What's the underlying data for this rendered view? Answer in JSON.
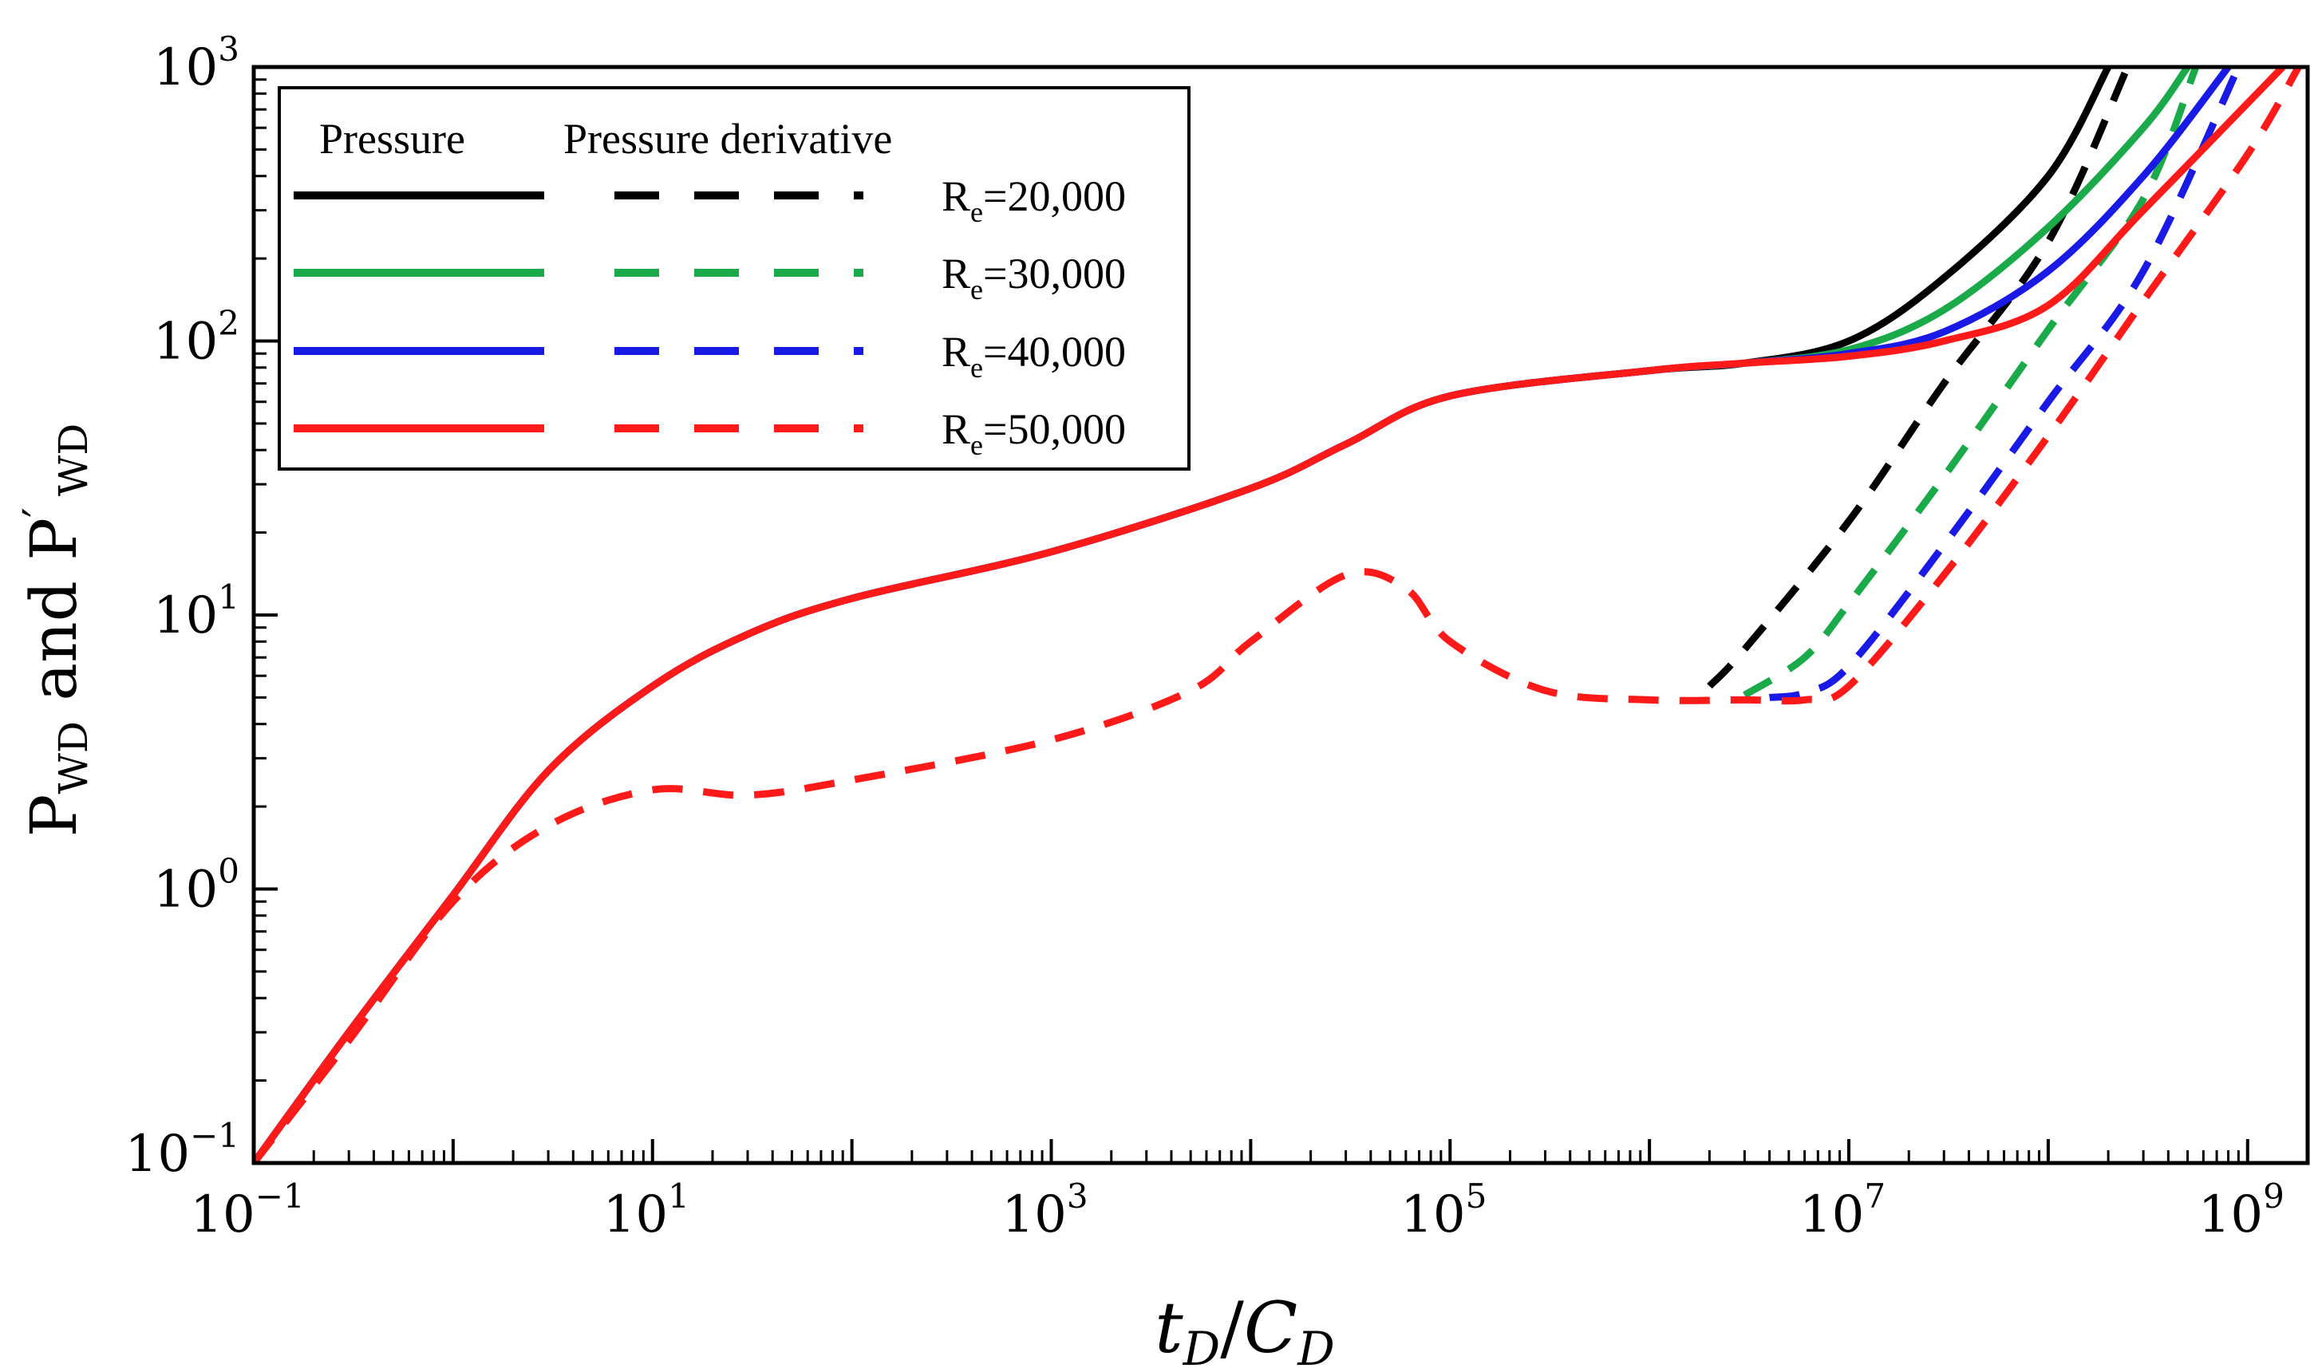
{
  "chart_data": {
    "type": "line",
    "title": "",
    "xlabel": {
      "t": "t",
      "t_sub": "D",
      "sep": "/",
      "c": "C",
      "c_sub": "D"
    },
    "ylabel": {
      "p1": "P",
      "p1_sub": "WD",
      "mid": " and P",
      "prime": "′",
      "p2_sub": "WD"
    },
    "x_scale": "log",
    "y_scale": "log",
    "xlim": [
      0.1,
      2000000000
    ],
    "ylim": [
      0.1,
      1000
    ],
    "x_ticks": [
      {
        "value": 0.1,
        "base": "10",
        "exp": "−1"
      },
      {
        "value": 10,
        "base": "10",
        "exp": "1"
      },
      {
        "value": 1000,
        "base": "10",
        "exp": "3"
      },
      {
        "value": 100000,
        "base": "10",
        "exp": "5"
      },
      {
        "value": 10000000,
        "base": "10",
        "exp": "7"
      },
      {
        "value": 1000000000,
        "base": "10",
        "exp": "9"
      }
    ],
    "y_ticks": [
      {
        "value": 0.1,
        "base": "10",
        "exp": "−1"
      },
      {
        "value": 1,
        "base": "10",
        "exp": "0"
      },
      {
        "value": 10,
        "base": "10",
        "exp": "1"
      },
      {
        "value": 100,
        "base": "10",
        "exp": "2"
      },
      {
        "value": 1000,
        "base": "10",
        "exp": "3"
      }
    ],
    "legend": {
      "position": "top-left",
      "header_pressure": "Pressure",
      "header_derivative": "Pressure derivative",
      "entries": [
        {
          "label_base": "R",
          "label_sub": "e",
          "label_value": "=20,000",
          "color": "#000000"
        },
        {
          "label_base": "R",
          "label_sub": "e",
          "label_value": "=30,000",
          "color": "#1aaa4a"
        },
        {
          "label_base": "R",
          "label_sub": "e",
          "label_value": "=40,000",
          "color": "#1a1ae6"
        },
        {
          "label_base": "R",
          "label_sub": "e",
          "label_value": "=50,000",
          "color": "#ff1a1a"
        }
      ]
    },
    "series": [
      {
        "name": "Pressure Re=20,000",
        "style": "solid",
        "color": "#000000",
        "points": [
          [
            0.1,
            0.1
          ],
          [
            0.3,
            0.3
          ],
          [
            1,
            0.95
          ],
          [
            3,
            2.7
          ],
          [
            10,
            5.5
          ],
          [
            30,
            8.5
          ],
          [
            100,
            11.5
          ],
          [
            1000,
            17
          ],
          [
            10000,
            29
          ],
          [
            30000,
            42
          ],
          [
            100000,
            63
          ],
          [
            1000000,
            78
          ],
          [
            3000000,
            83
          ],
          [
            10000000,
            100
          ],
          [
            30000000,
            170
          ],
          [
            100000000,
            400
          ],
          [
            200000000,
            1000
          ]
        ]
      },
      {
        "name": "Pressure derivative Re=20,000",
        "style": "dashed",
        "color": "#000000",
        "points": [
          [
            2000000,
            5.5
          ],
          [
            3000000,
            7.5
          ],
          [
            10000000,
            22
          ],
          [
            30000000,
            70
          ],
          [
            100000000,
            230
          ],
          [
            250000000,
            1000
          ]
        ]
      },
      {
        "name": "Pressure Re=30,000",
        "style": "solid",
        "color": "#1aaa4a",
        "points": [
          [
            0.1,
            0.1
          ],
          [
            0.3,
            0.3
          ],
          [
            1,
            0.95
          ],
          [
            3,
            2.7
          ],
          [
            10,
            5.5
          ],
          [
            30,
            8.5
          ],
          [
            100,
            11.5
          ],
          [
            1000,
            17
          ],
          [
            10000,
            29
          ],
          [
            30000,
            42
          ],
          [
            100000,
            63
          ],
          [
            1000000,
            78
          ],
          [
            3000000,
            83
          ],
          [
            10000000,
            93
          ],
          [
            30000000,
            130
          ],
          [
            100000000,
            260
          ],
          [
            300000000,
            600
          ],
          [
            500000000,
            1000
          ]
        ]
      },
      {
        "name": "Pressure derivative Re=30,000",
        "style": "dashed",
        "color": "#1aaa4a",
        "points": [
          [
            3000000,
            5.1
          ],
          [
            6000000,
            7
          ],
          [
            10000000,
            11
          ],
          [
            30000000,
            32
          ],
          [
            100000000,
            110
          ],
          [
            300000000,
            330
          ],
          [
            550000000,
            1000
          ]
        ]
      },
      {
        "name": "Pressure Re=40,000",
        "style": "solid",
        "color": "#1a1ae6",
        "points": [
          [
            0.1,
            0.1
          ],
          [
            0.3,
            0.3
          ],
          [
            1,
            0.95
          ],
          [
            3,
            2.7
          ],
          [
            10,
            5.5
          ],
          [
            30,
            8.5
          ],
          [
            100,
            11.5
          ],
          [
            1000,
            17
          ],
          [
            10000,
            29
          ],
          [
            30000,
            42
          ],
          [
            100000,
            63
          ],
          [
            1000000,
            78
          ],
          [
            3000000,
            83
          ],
          [
            10000000,
            90
          ],
          [
            30000000,
            108
          ],
          [
            100000000,
            180
          ],
          [
            300000000,
            400
          ],
          [
            800000000,
            1000
          ]
        ]
      },
      {
        "name": "Pressure derivative Re=40,000",
        "style": "dashed",
        "color": "#1a1ae6",
        "points": [
          [
            4000000,
            5
          ],
          [
            6000000,
            5.2
          ],
          [
            10000000,
            6.5
          ],
          [
            30000000,
            18
          ],
          [
            100000000,
            60
          ],
          [
            300000000,
            180
          ],
          [
            900000000,
            1000
          ]
        ]
      },
      {
        "name": "Pressure Re=50,000",
        "style": "solid",
        "color": "#ff1a1a",
        "points": [
          [
            0.1,
            0.1
          ],
          [
            0.3,
            0.3
          ],
          [
            1,
            0.95
          ],
          [
            3,
            2.7
          ],
          [
            10,
            5.5
          ],
          [
            30,
            8.5
          ],
          [
            100,
            11.5
          ],
          [
            1000,
            17
          ],
          [
            10000,
            29
          ],
          [
            30000,
            42
          ],
          [
            100000,
            63
          ],
          [
            1000000,
            78
          ],
          [
            3000000,
            83
          ],
          [
            10000000,
            88
          ],
          [
            30000000,
            100
          ],
          [
            100000000,
            135
          ],
          [
            300000000,
            300
          ],
          [
            1500000000,
            1000
          ]
        ]
      },
      {
        "name": "Pressure derivative Re=50,000",
        "style": "dashed",
        "color": "#ff1a1a",
        "points": [
          [
            0.1,
            0.1
          ],
          [
            0.3,
            0.28
          ],
          [
            1,
            0.9
          ],
          [
            3,
            1.7
          ],
          [
            10,
            2.3
          ],
          [
            30,
            2.2
          ],
          [
            100,
            2.5
          ],
          [
            1000,
            3.5
          ],
          [
            5000,
            5.3
          ],
          [
            10000,
            8
          ],
          [
            30000,
            14
          ],
          [
            60000,
            12.5
          ],
          [
            100000,
            8
          ],
          [
            300000,
            5.3
          ],
          [
            1000000,
            4.9
          ],
          [
            3000000,
            4.9
          ],
          [
            6000000,
            4.9
          ],
          [
            10000000,
            5.5
          ],
          [
            30000000,
            14
          ],
          [
            100000000,
            45
          ],
          [
            300000000,
            140
          ],
          [
            1000000000,
            480
          ],
          [
            1800000000,
            1000
          ]
        ]
      }
    ]
  }
}
